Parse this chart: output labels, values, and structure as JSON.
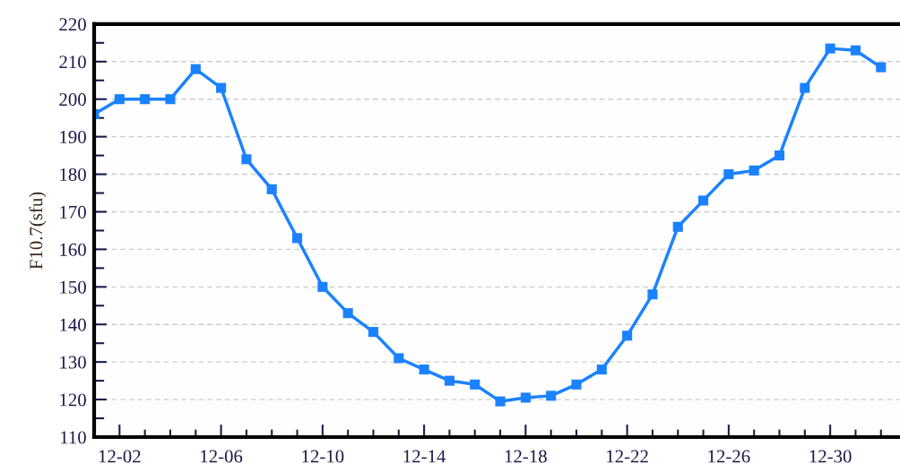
{
  "chart_data": {
    "type": "line",
    "ylabel": "F10.7(sfu)",
    "categories": [
      null,
      "12-02",
      null,
      null,
      null,
      "12-06",
      null,
      null,
      null,
      "12-10",
      null,
      null,
      null,
      "12-14",
      null,
      null,
      null,
      "12-18",
      null,
      null,
      null,
      "12-22",
      null,
      null,
      null,
      "12-26",
      null,
      null,
      null,
      "12-30",
      null,
      null
    ],
    "series": [
      {
        "color": "#1a82ff",
        "values": [
          196,
          200,
          200,
          200,
          208,
          203,
          184,
          176,
          163,
          150,
          143,
          138,
          131,
          128,
          125,
          124,
          119.5,
          120.5,
          121,
          124,
          128,
          137,
          148,
          166,
          173,
          180,
          181,
          185,
          203,
          213.5,
          213,
          208.5
        ]
      }
    ],
    "ylim": [
      110,
      220
    ],
    "yticks": [
      110,
      {
        "value": 115,
        "label": null
      },
      120,
      {
        "value": 125,
        "label": null
      },
      130,
      {
        "value": 135,
        "label": null
      },
      140,
      {
        "value": 145,
        "label": null
      },
      150,
      {
        "value": 155,
        "label": null
      },
      160,
      {
        "value": 165,
        "label": null
      },
      170,
      {
        "value": 175,
        "label": null
      },
      180,
      {
        "value": 185,
        "label": null
      },
      190,
      {
        "value": 195,
        "label": null
      },
      200,
      {
        "value": 205,
        "label": null
      },
      210,
      {
        "value": 215,
        "label": null
      },
      220
    ],
    "grid": "y",
    "marker": "square",
    "line_style": "solid"
  }
}
